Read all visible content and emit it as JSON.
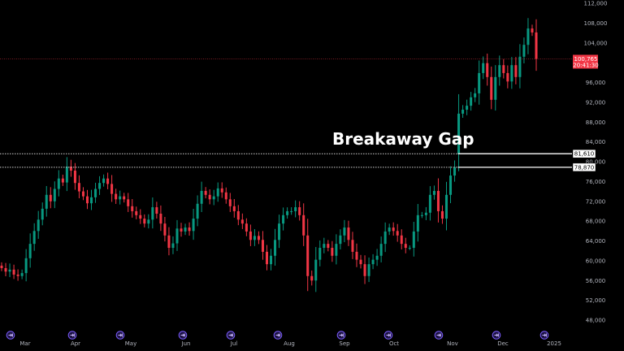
{
  "chart_data": {
    "type": "candlestick",
    "title": "",
    "ylim": [
      48000,
      112000
    ],
    "y_ticks": [
      112000,
      108000,
      104000,
      100000,
      96000,
      92000,
      88000,
      84000,
      80000,
      76000,
      72000,
      68000,
      64000,
      60000,
      56000,
      52000,
      48000
    ],
    "y_tick_labels": [
      "112,000",
      "108,000",
      "104,000",
      "",
      "96,000",
      "92,000",
      "88,000",
      "84,000",
      "80,000",
      "76,000",
      "72,000",
      "68,000",
      "64,000",
      "60,000",
      "56,000",
      "52,000",
      "48,000"
    ],
    "x_tick_labels": [
      "Mar",
      "Apr",
      "May",
      "Jun",
      "Jul",
      "Aug",
      "Sep",
      "Oct",
      "Nov",
      "Dec",
      "2025"
    ],
    "grid": false,
    "colors": {
      "up": "#089981",
      "down": "#f23645",
      "background": "#000000",
      "axis_text": "#b2b5be",
      "event_icon": "#7b5cff"
    },
    "first_open": 59000,
    "closes": [
      58500,
      57800,
      58200,
      57200,
      56900,
      57500,
      60500,
      63400,
      66000,
      68300,
      70500,
      73300,
      72000,
      74500,
      76600,
      75800,
      79000,
      78200,
      75700,
      74000,
      73000,
      71600,
      72800,
      74500,
      75700,
      76600,
      75500,
      73500,
      72400,
      73000,
      72400,
      71000,
      70000,
      69200,
      68500,
      67500,
      68300,
      70800,
      69500,
      67500,
      65100,
      62600,
      63500,
      66500,
      65900,
      66700,
      66000,
      68500,
      71500,
      74100,
      73300,
      72400,
      73000,
      74600,
      73800,
      72400,
      71000,
      70000,
      68300,
      67500,
      65900,
      64200,
      65000,
      64200,
      61800,
      59300,
      61000,
      64200,
      67500,
      69200,
      70000,
      70000,
      70800,
      69200,
      65100,
      56900,
      56000,
      60200,
      62600,
      63400,
      62600,
      61000,
      63400,
      65100,
      66700,
      64200,
      61800,
      60200,
      59300,
      56900,
      59300,
      60200,
      61000,
      63400,
      65900,
      66700,
      66000,
      65100,
      63400,
      62600,
      62600,
      65900,
      69200,
      69200,
      69700,
      73300,
      74100,
      70000,
      68500,
      73300,
      77200,
      78870,
      89700,
      90500,
      91300,
      93000,
      93800,
      97900,
      99900,
      97100,
      92500,
      97100,
      99500,
      97900,
      96200,
      99500,
      97100,
      101200,
      103600,
      106900,
      106100,
      100765
    ],
    "gap": {
      "from": 78870,
      "to": 81610,
      "from_label": "78,870",
      "to_label": "81,610"
    },
    "last_price": {
      "value": 100765,
      "label": "100,765",
      "countdown": "20:41:30"
    },
    "annotation": "Breakaway Gap",
    "event_markers": 11
  }
}
